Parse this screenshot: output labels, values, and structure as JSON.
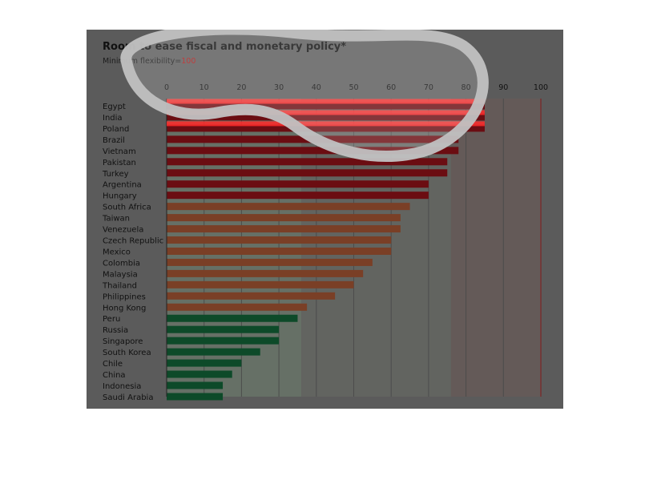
{
  "chart_data": {
    "type": "bar",
    "orientation": "horizontal",
    "title": "Room to ease fiscal and monetary policy*",
    "subtitle_prefix": "Minimum flexibility=",
    "subtitle_value": "100",
    "xlim": [
      0,
      100
    ],
    "xticks": [
      "0",
      "10",
      "20",
      "30",
      "40",
      "50",
      "60",
      "70",
      "80",
      "90",
      "100"
    ],
    "categories": [
      "Egypt",
      "India",
      "Poland",
      "Brazil",
      "Vietnam",
      "Pakistan",
      "Turkey",
      "Argentina",
      "Hungary",
      "South Africa",
      "Taiwan",
      "Venezuela",
      "Czech Republic",
      "Mexico",
      "Colombia",
      "Malaysia",
      "Thailand",
      "Philippines",
      "Hong Kong",
      "Peru",
      "Russia",
      "Singapore",
      "South Korea",
      "Chile",
      "China",
      "Indonesia",
      "Saudi Arabia"
    ],
    "values": [
      85,
      85,
      85,
      78,
      78,
      75,
      75,
      70,
      70,
      65,
      62.5,
      62.5,
      60,
      60,
      55,
      52.5,
      50,
      45,
      37.5,
      35,
      30,
      30,
      25,
      20,
      17.5,
      15,
      15
    ],
    "groups": [
      "high",
      "high",
      "high",
      "high",
      "high",
      "high",
      "high",
      "high",
      "high",
      "mid",
      "mid",
      "mid",
      "mid",
      "mid",
      "mid",
      "mid",
      "mid",
      "mid",
      "mid",
      "low",
      "low",
      "low",
      "low",
      "low",
      "low",
      "low",
      "low"
    ],
    "colors": {
      "high": "#6b0d12",
      "mid": "#7a3f26",
      "low": "#0d4a29"
    },
    "background_bands": [
      {
        "from": 0,
        "to": 36,
        "color": "#667066"
      },
      {
        "from": 36,
        "to": 76,
        "color": "#626460"
      },
      {
        "from": 76,
        "to": 100,
        "color": "#645a58"
      }
    ],
    "grid": true
  }
}
